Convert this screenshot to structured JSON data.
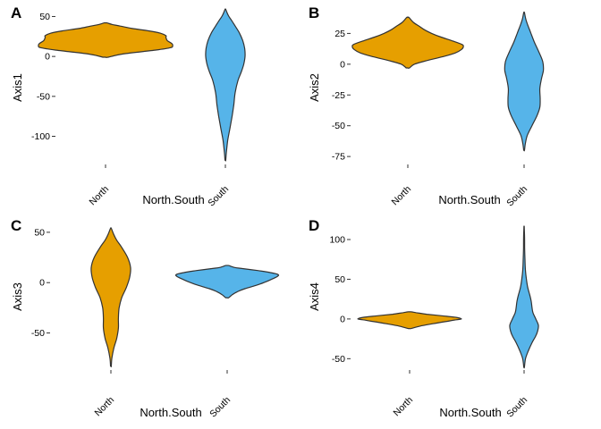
{
  "colors": {
    "North": "#E69F00",
    "South": "#56B4E9"
  },
  "chart_data": [
    {
      "type": "violin",
      "panel": "A",
      "xlabel": "North.South",
      "ylabel": "Axis1",
      "categories": [
        "North",
        "South"
      ],
      "yticks": [
        50,
        0,
        -50,
        -100
      ],
      "ylim": [
        -133,
        55
      ],
      "series": [
        {
          "category": "North",
          "min": -1,
          "max": 42,
          "profile": [
            [
              -1,
              0.04
            ],
            [
              3,
              0.25
            ],
            [
              8,
              0.75
            ],
            [
              11,
              0.97
            ],
            [
              13,
              1.0
            ],
            [
              16,
              0.99
            ],
            [
              20,
              0.92
            ],
            [
              24,
              0.9
            ],
            [
              26,
              0.9
            ],
            [
              29,
              0.82
            ],
            [
              32,
              0.65
            ],
            [
              35,
              0.4
            ],
            [
              38,
              0.22
            ],
            [
              40,
              0.1
            ],
            [
              42,
              0.02
            ]
          ]
        },
        {
          "category": "South",
          "min": -130,
          "max": 59,
          "profile": [
            [
              -130,
              0.02
            ],
            [
              -120,
              0.05
            ],
            [
              -105,
              0.12
            ],
            [
              -90,
              0.23
            ],
            [
              -75,
              0.34
            ],
            [
              -60,
              0.43
            ],
            [
              -45,
              0.5
            ],
            [
              -30,
              0.64
            ],
            [
              -20,
              0.8
            ],
            [
              -10,
              0.93
            ],
            [
              0,
              1.0
            ],
            [
              10,
              0.98
            ],
            [
              20,
              0.88
            ],
            [
              30,
              0.7
            ],
            [
              38,
              0.5
            ],
            [
              45,
              0.32
            ],
            [
              50,
              0.18
            ],
            [
              55,
              0.08
            ],
            [
              59,
              0.02
            ]
          ]
        }
      ]
    },
    {
      "type": "violin",
      "panel": "B",
      "xlabel": "North.South",
      "ylabel": "Axis2",
      "categories": [
        "North",
        "South"
      ],
      "yticks": [
        25,
        0,
        -25,
        -50,
        -75
      ],
      "ylim": [
        -80,
        42
      ],
      "series": [
        {
          "category": "North",
          "min": -3,
          "max": 38,
          "profile": [
            [
              -3,
              0.03
            ],
            [
              0,
              0.12
            ],
            [
              3,
              0.35
            ],
            [
              6,
              0.62
            ],
            [
              9,
              0.85
            ],
            [
              12,
              0.97
            ],
            [
              14,
              1.0
            ],
            [
              16,
              0.98
            ],
            [
              19,
              0.8
            ],
            [
              22,
              0.6
            ],
            [
              25,
              0.43
            ],
            [
              28,
              0.3
            ],
            [
              31,
              0.2
            ],
            [
              34,
              0.1
            ],
            [
              38,
              0.02
            ]
          ]
        },
        {
          "category": "South",
          "min": -70,
          "max": 42,
          "profile": [
            [
              -70,
              0.02
            ],
            [
              -65,
              0.06
            ],
            [
              -58,
              0.16
            ],
            [
              -50,
              0.4
            ],
            [
              -42,
              0.65
            ],
            [
              -35,
              0.8
            ],
            [
              -28,
              0.82
            ],
            [
              -20,
              0.8
            ],
            [
              -12,
              0.88
            ],
            [
              -5,
              0.98
            ],
            [
              2,
              0.95
            ],
            [
              10,
              0.75
            ],
            [
              18,
              0.52
            ],
            [
              25,
              0.35
            ],
            [
              32,
              0.18
            ],
            [
              37,
              0.08
            ],
            [
              42,
              0.02
            ]
          ]
        }
      ]
    },
    {
      "type": "violin",
      "panel": "C",
      "xlabel": "North.South",
      "ylabel": "Axis3",
      "categories": [
        "North",
        "South"
      ],
      "yticks": [
        50,
        0,
        -50
      ],
      "ylim": [
        -85,
        57
      ],
      "series": [
        {
          "category": "North",
          "min": -83,
          "max": 54,
          "profile": [
            [
              -83,
              0.02
            ],
            [
              -75,
              0.05
            ],
            [
              -65,
              0.15
            ],
            [
              -55,
              0.3
            ],
            [
              -45,
              0.38
            ],
            [
              -35,
              0.38
            ],
            [
              -25,
              0.42
            ],
            [
              -15,
              0.55
            ],
            [
              -5,
              0.78
            ],
            [
              5,
              0.95
            ],
            [
              15,
              1.0
            ],
            [
              25,
              0.85
            ],
            [
              35,
              0.55
            ],
            [
              42,
              0.3
            ],
            [
              48,
              0.14
            ],
            [
              54,
              0.02
            ]
          ]
        },
        {
          "category": "South",
          "min": -15,
          "max": 17,
          "profile": [
            [
              -15,
              0.03
            ],
            [
              -12,
              0.1
            ],
            [
              -9,
              0.2
            ],
            [
              -6,
              0.35
            ],
            [
              -3,
              0.55
            ],
            [
              0,
              0.72
            ],
            [
              3,
              0.86
            ],
            [
              6,
              0.98
            ],
            [
              8,
              1.0
            ],
            [
              10,
              0.85
            ],
            [
              12,
              0.6
            ],
            [
              14,
              0.3
            ],
            [
              15,
              0.15
            ],
            [
              17,
              0.03
            ]
          ]
        }
      ]
    },
    {
      "type": "violin",
      "panel": "D",
      "xlabel": "North.South",
      "ylabel": "Axis4",
      "categories": [
        "North",
        "South"
      ],
      "yticks": [
        100,
        50,
        0,
        -50
      ],
      "ylim": [
        -62,
        118
      ],
      "series": [
        {
          "category": "North",
          "min": -12,
          "max": 9,
          "profile": [
            [
              -12,
              0.03
            ],
            [
              -9,
              0.2
            ],
            [
              -6,
              0.45
            ],
            [
              -3,
              0.72
            ],
            [
              -1,
              0.9
            ],
            [
              0,
              1.0
            ],
            [
              2,
              0.9
            ],
            [
              4,
              0.62
            ],
            [
              6,
              0.33
            ],
            [
              8,
              0.12
            ],
            [
              9,
              0.03
            ]
          ]
        },
        {
          "category": "South",
          "min": -61,
          "max": 116,
          "profile": [
            [
              -61,
              0.02
            ],
            [
              -50,
              0.1
            ],
            [
              -40,
              0.3
            ],
            [
              -30,
              0.55
            ],
            [
              -22,
              0.8
            ],
            [
              -15,
              0.95
            ],
            [
              -8,
              1.0
            ],
            [
              0,
              0.82
            ],
            [
              8,
              0.62
            ],
            [
              15,
              0.55
            ],
            [
              22,
              0.5
            ],
            [
              30,
              0.4
            ],
            [
              40,
              0.25
            ],
            [
              50,
              0.16
            ],
            [
              60,
              0.1
            ],
            [
              75,
              0.06
            ],
            [
              90,
              0.04
            ],
            [
              105,
              0.03
            ],
            [
              116,
              0.01
            ]
          ]
        }
      ]
    }
  ]
}
